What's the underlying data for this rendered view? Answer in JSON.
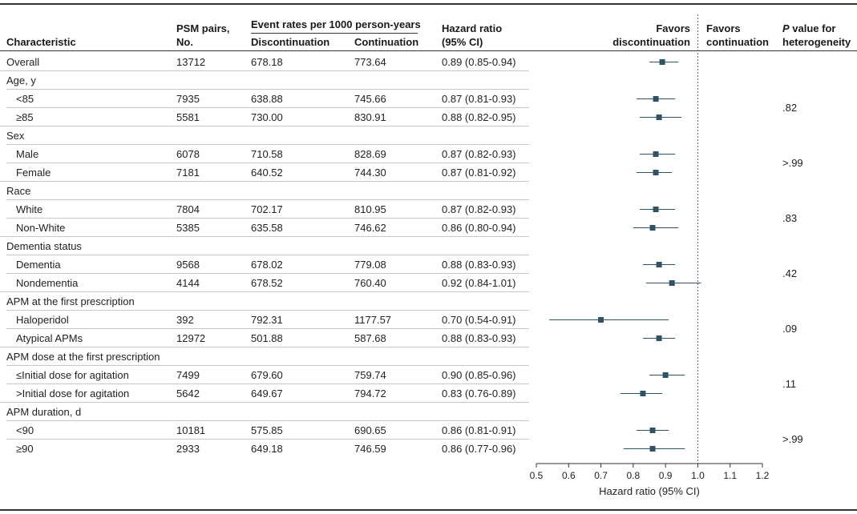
{
  "header": {
    "characteristic": "Characteristic",
    "psm_line1": "PSM pairs,",
    "psm_line2": "No.",
    "event_rates": "Event rates per 1000 person-years",
    "discontinuation": "Discontinuation",
    "continuation": "Continuation",
    "hr_line1": "Hazard ratio",
    "hr_line2": "(95% CI)",
    "favors_disc_line1": "Favors",
    "favors_disc_line2": "discontinuation",
    "favors_cont_line1": "Favors",
    "favors_cont_line2": "continuation",
    "pval_italic": "P",
    "pval_line1": " value for",
    "pval_line2": "heterogeneity"
  },
  "rows": [
    {
      "label": "Overall",
      "indent": false,
      "psm": "13712",
      "disc": "678.18",
      "cont": "773.64",
      "hr_text": "0.89 (0.85-0.94)"
    },
    {
      "label": "Age, y",
      "indent": false
    },
    {
      "label": "<85",
      "indent": true,
      "psm": "7935",
      "disc": "638.88",
      "cont": "745.66",
      "hr_text": "0.87 (0.81-0.93)"
    },
    {
      "label": "≥85",
      "indent": true,
      "psm": "5581",
      "disc": "730.00",
      "cont": "830.91",
      "hr_text": "0.88 (0.82-0.95)"
    },
    {
      "label": "Sex",
      "indent": false
    },
    {
      "label": "Male",
      "indent": true,
      "psm": "6078",
      "disc": "710.58",
      "cont": "828.69",
      "hr_text": "0.87 (0.82-0.93)"
    },
    {
      "label": "Female",
      "indent": true,
      "psm": "7181",
      "disc": "640.52",
      "cont": "744.30",
      "hr_text": "0.87 (0.81-0.92)"
    },
    {
      "label": "Race",
      "indent": false
    },
    {
      "label": "White",
      "indent": true,
      "psm": "7804",
      "disc": "702.17",
      "cont": "810.95",
      "hr_text": "0.87 (0.82-0.93)"
    },
    {
      "label": "Non-White",
      "indent": true,
      "psm": "5385",
      "disc": "635.58",
      "cont": "746.62",
      "hr_text": "0.86 (0.80-0.94)"
    },
    {
      "label": "Dementia status",
      "indent": false
    },
    {
      "label": "Dementia",
      "indent": true,
      "psm": "9568",
      "disc": "678.02",
      "cont": "779.08",
      "hr_text": "0.88 (0.83-0.93)"
    },
    {
      "label": "Nondementia",
      "indent": true,
      "psm": "4144",
      "disc": "678.52",
      "cont": "760.40",
      "hr_text": "0.92 (0.84-1.01)"
    },
    {
      "label": "APM at the first prescription",
      "indent": false
    },
    {
      "label": "Haloperidol",
      "indent": true,
      "psm": "392",
      "disc": "792.31",
      "cont": "1177.57",
      "hr_text": "0.70 (0.54-0.91)"
    },
    {
      "label": "Atypical APMs",
      "indent": true,
      "psm": "12972",
      "disc": "501.88",
      "cont": "587.68",
      "hr_text": "0.88 (0.83-0.93)"
    },
    {
      "label": "APM dose at the first prescription",
      "indent": false
    },
    {
      "label": "≤Initial dose for agitation",
      "indent": true,
      "psm": "7499",
      "disc": "679.60",
      "cont": "759.74",
      "hr_text": "0.90 (0.85-0.96)"
    },
    {
      "label": ">Initial dose for agitation",
      "indent": true,
      "psm": "5642",
      "disc": "649.67",
      "cont": "794.72",
      "hr_text": "0.83 (0.76-0.89)"
    },
    {
      "label": "APM duration, d",
      "indent": false
    },
    {
      "label": "<90",
      "indent": true,
      "psm": "10181",
      "disc": "575.85",
      "cont": "690.65",
      "hr_text": "0.86 (0.81-0.91)"
    },
    {
      "label": "≥90",
      "indent": true,
      "psm": "2933",
      "disc": "649.18",
      "cont": "746.59",
      "hr_text": "0.86 (0.77-0.96)"
    }
  ],
  "pvalues": [
    ".82",
    ">.99",
    ".83",
    ".42",
    ".09",
    ".11",
    ">.99"
  ],
  "chart_data": {
    "type": "forest",
    "xlabel": "Hazard ratio (95% CI)",
    "xlim": [
      0.5,
      1.2
    ],
    "xticks": [
      0.5,
      0.6,
      0.7,
      0.8,
      0.9,
      1.0,
      1.1,
      1.2
    ],
    "xtick_labels": [
      "0.5",
      "0.6",
      "0.7",
      "0.8",
      "0.9",
      "1.0",
      "1.1",
      "1.2"
    ],
    "reference_line": 1.0,
    "points": [
      {
        "label": "Overall",
        "hr": 0.89,
        "lo": 0.85,
        "hi": 0.94
      },
      {
        "label": "<85",
        "hr": 0.87,
        "lo": 0.81,
        "hi": 0.93
      },
      {
        "label": "≥85",
        "hr": 0.88,
        "lo": 0.82,
        "hi": 0.95
      },
      {
        "label": "Male",
        "hr": 0.87,
        "lo": 0.82,
        "hi": 0.93
      },
      {
        "label": "Female",
        "hr": 0.87,
        "lo": 0.81,
        "hi": 0.92
      },
      {
        "label": "White",
        "hr": 0.87,
        "lo": 0.82,
        "hi": 0.93
      },
      {
        "label": "Non-White",
        "hr": 0.86,
        "lo": 0.8,
        "hi": 0.94
      },
      {
        "label": "Dementia",
        "hr": 0.88,
        "lo": 0.83,
        "hi": 0.93
      },
      {
        "label": "Nondementia",
        "hr": 0.92,
        "lo": 0.84,
        "hi": 1.01
      },
      {
        "label": "Haloperidol",
        "hr": 0.7,
        "lo": 0.54,
        "hi": 0.91
      },
      {
        "label": "Atypical APMs",
        "hr": 0.88,
        "lo": 0.83,
        "hi": 0.93
      },
      {
        "label": "≤Initial dose for agitation",
        "hr": 0.9,
        "lo": 0.85,
        "hi": 0.96
      },
      {
        "label": ">Initial dose for agitation",
        "hr": 0.83,
        "lo": 0.76,
        "hi": 0.89
      },
      {
        "label": "<90",
        "hr": 0.86,
        "lo": 0.81,
        "hi": 0.91
      },
      {
        "label": "≥90",
        "hr": 0.86,
        "lo": 0.77,
        "hi": 0.96
      }
    ],
    "colors": {
      "marker": "#2e5464",
      "ci_line": "#2e5464",
      "axis": "#333333",
      "reference": "#666666"
    }
  }
}
